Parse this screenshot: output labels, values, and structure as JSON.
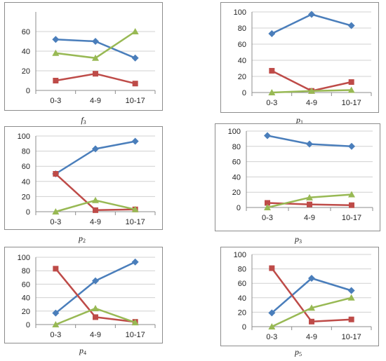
{
  "colors": {
    "series1": "#4a7ebb",
    "series2": "#be4b48",
    "series3": "#98b954",
    "grid": "#d0d0d0",
    "axis": "#8c8c8c"
  },
  "chart_data": [
    {
      "type": "line",
      "caption_main": "f",
      "caption_sub": "3",
      "categories": [
        "0-3",
        "4-9",
        "10-17"
      ],
      "ylim": [
        0,
        80
      ],
      "yticks": [
        0,
        20,
        40,
        60
      ],
      "grid": true,
      "legend": "none",
      "series": [
        {
          "values": [
            52,
            50,
            33
          ],
          "color": "#4a7ebb",
          "marker": "diamond"
        },
        {
          "values": [
            10,
            17,
            7
          ],
          "color": "#be4b48",
          "marker": "square"
        },
        {
          "values": [
            38,
            33,
            60
          ],
          "color": "#98b954",
          "marker": "triangle"
        }
      ]
    },
    {
      "type": "line",
      "caption_main": "p",
      "caption_sub": "1",
      "categories": [
        "0-3",
        "4-9",
        "10-17"
      ],
      "ylim": [
        0,
        100
      ],
      "yticks": [
        0,
        20,
        40,
        60,
        80,
        100
      ],
      "grid": true,
      "legend": "none",
      "series": [
        {
          "values": [
            73,
            97,
            83
          ],
          "color": "#4a7ebb",
          "marker": "diamond"
        },
        {
          "values": [
            27,
            2,
            13
          ],
          "color": "#be4b48",
          "marker": "square"
        },
        {
          "values": [
            0,
            2,
            3
          ],
          "color": "#98b954",
          "marker": "triangle"
        }
      ]
    },
    {
      "type": "line",
      "caption_main": "p",
      "caption_sub": "2",
      "categories": [
        "0-3",
        "4-9",
        "10-17"
      ],
      "ylim": [
        0,
        100
      ],
      "yticks": [
        0,
        20,
        40,
        60,
        80,
        100
      ],
      "grid": true,
      "legend": "none",
      "series": [
        {
          "values": [
            50,
            83,
            93
          ],
          "color": "#4a7ebb",
          "marker": "diamond"
        },
        {
          "values": [
            50,
            2,
            3
          ],
          "color": "#be4b48",
          "marker": "square"
        },
        {
          "values": [
            0,
            15,
            3
          ],
          "color": "#98b954",
          "marker": "triangle"
        }
      ]
    },
    {
      "type": "line",
      "caption_main": "p",
      "caption_sub": "3",
      "categories": [
        "0-3",
        "4-9",
        "10-17"
      ],
      "ylim": [
        0,
        100
      ],
      "yticks": [
        0,
        20,
        40,
        60,
        80,
        100
      ],
      "grid": true,
      "legend": "none",
      "series": [
        {
          "values": [
            94,
            83,
            80
          ],
          "color": "#4a7ebb",
          "marker": "diamond"
        },
        {
          "values": [
            6,
            4,
            3
          ],
          "color": "#be4b48",
          "marker": "square"
        },
        {
          "values": [
            0,
            13,
            17
          ],
          "color": "#98b954",
          "marker": "triangle"
        }
      ]
    },
    {
      "type": "line",
      "caption_main": "p",
      "caption_sub": "4",
      "categories": [
        "0-3",
        "4-9",
        "10-17"
      ],
      "ylim": [
        0,
        100
      ],
      "yticks": [
        0,
        20,
        40,
        60,
        80,
        100
      ],
      "grid": true,
      "legend": "none",
      "series": [
        {
          "values": [
            17,
            65,
            93
          ],
          "color": "#4a7ebb",
          "marker": "diamond"
        },
        {
          "values": [
            83,
            11,
            4
          ],
          "color": "#be4b48",
          "marker": "square"
        },
        {
          "values": [
            0,
            24,
            3
          ],
          "color": "#98b954",
          "marker": "triangle"
        }
      ]
    },
    {
      "type": "line",
      "caption_main": "p",
      "caption_sub": "5",
      "categories": [
        "0-3",
        "4-9",
        "10-17"
      ],
      "ylim": [
        0,
        100
      ],
      "yticks": [
        0,
        20,
        40,
        60,
        80,
        100
      ],
      "grid": true,
      "legend": "none",
      "series": [
        {
          "values": [
            19,
            67,
            50
          ],
          "color": "#4a7ebb",
          "marker": "diamond"
        },
        {
          "values": [
            81,
            7,
            10
          ],
          "color": "#be4b48",
          "marker": "square"
        },
        {
          "values": [
            0,
            26,
            40
          ],
          "color": "#98b954",
          "marker": "triangle"
        }
      ]
    }
  ]
}
